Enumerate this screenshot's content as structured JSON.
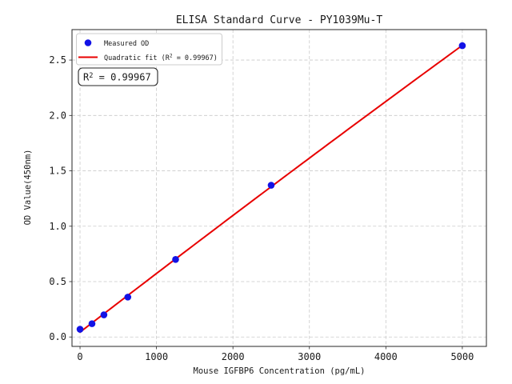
{
  "figure": {
    "title": "ELISA Standard Curve - PY1039Mu-T"
  },
  "chart_data": {
    "type": "scatter",
    "title": "ELISA Standard Curve - PY1039Mu-T",
    "xlabel": "Mouse IGFBP6 Concentration (pg/mL)",
    "ylabel": "OD Value(450nm)",
    "xlim": [
      -105,
      5315
    ],
    "ylim": [
      -0.085,
      2.775
    ],
    "x_ticks": [
      "0",
      "1000",
      "2000",
      "3000",
      "4000",
      "5000"
    ],
    "x_tick_values": [
      0,
      1000,
      2000,
      3000,
      4000,
      5000
    ],
    "y_ticks": [
      "0.0",
      "0.5",
      "1.0",
      "1.5",
      "2.0",
      "2.5"
    ],
    "y_tick_values": [
      0,
      0.5,
      1.0,
      1.5,
      2.0,
      2.5
    ],
    "grid": true,
    "grid_style": "dashed",
    "legend": {
      "position": "upper left",
      "entries": [
        {
          "label": "Measured OD",
          "type": "marker"
        },
        {
          "label": "Quadratic fit (R² = 0.99967)",
          "type": "line"
        }
      ]
    },
    "series": [
      {
        "name": "Measured OD",
        "type": "scatter",
        "marker": "circle",
        "x": [
          0,
          156.25,
          312.5,
          625,
          1250,
          2500,
          5000
        ],
        "y": [
          0.07,
          0.12,
          0.2,
          0.36,
          0.7,
          1.37,
          2.63
        ]
      },
      {
        "name": "Quadratic fit",
        "type": "quadratic-fit",
        "fit_of": "Measured OD",
        "x_range": [
          0,
          5000
        ],
        "r_squared": 0.99967
      }
    ],
    "annotation": {
      "text": "R² = 0.99967"
    }
  },
  "colors": {
    "scatter": "#1212e6",
    "fit_line": "#e80000",
    "grid": "#c9c9c9",
    "spine": "#262626",
    "text": "#1a1a1a",
    "legend_border": "#cccccc",
    "background": "#ffffff"
  }
}
